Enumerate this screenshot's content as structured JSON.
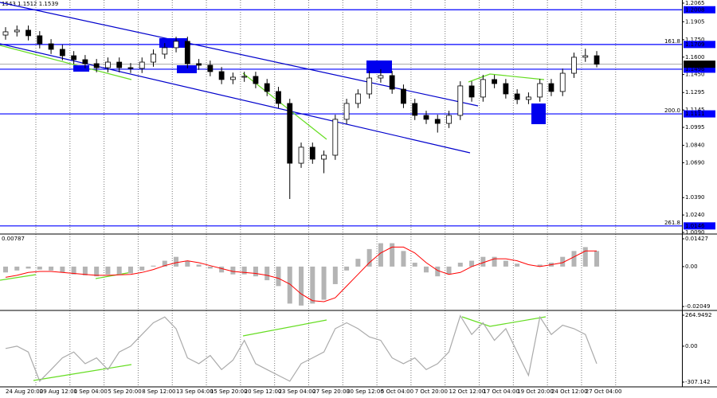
{
  "header_text": "1543 1.1512 1.1539",
  "chart_data": [
    {
      "type": "candlestick",
      "categories": [
        "24 Aug 20:00",
        null,
        null,
        "29 Aug 12:00",
        null,
        null,
        "1 Sep 04:00",
        null,
        null,
        "5 Sep 20:00",
        null,
        null,
        "8 Sep 12:00",
        null,
        null,
        "13 Sep 04:00",
        null,
        null,
        "15 Sep 20:00",
        null,
        null,
        "20 Sep 12:00",
        null,
        null,
        "23 Sep 04:00",
        null,
        null,
        "27 Sep 20:00",
        null,
        null,
        "30 Sep 12:00",
        null,
        null,
        "5 Oct 04:00",
        null,
        null,
        "7 Oct 20:00",
        null,
        null,
        "12 Oct 12:00",
        null,
        null,
        "17 Oct 04:00",
        null,
        null,
        "19 Oct 20:00",
        null,
        null,
        "24 Oct 12:00",
        null,
        null,
        "27 Oct 04:00",
        null
      ],
      "open": [
        1.179,
        1.1818,
        1.1832,
        1.1784,
        1.1715,
        1.1667,
        1.1612,
        1.1578,
        1.1544,
        1.1509,
        1.1557,
        1.1509,
        1.1503,
        1.1557,
        1.1626,
        1.1681,
        1.1736,
        1.1544,
        1.153,
        1.1475,
        1.1407,
        1.1427,
        1.1434,
        1.1372,
        1.1304,
        1.1201,
        1.0686,
        1.0824,
        1.0721,
        1.0755,
        1.1064,
        1.1201,
        1.1283,
        1.142,
        1.1441,
        1.1324,
        1.1201,
        1.1098,
        1.1064,
        1.1029,
        1.1098,
        1.1352,
        1.1256,
        1.1407,
        1.1372,
        1.1283,
        1.1235,
        1.1256,
        1.1372,
        1.1304,
        1.1461,
        1.1599,
        1.1612
      ],
      "high": [
        1.1858,
        1.1872,
        1.1872,
        1.1824,
        1.1755,
        1.1707,
        1.1652,
        1.1618,
        1.1584,
        1.1597,
        1.1597,
        1.1549,
        1.1597,
        1.1666,
        1.1721,
        1.1776,
        1.1776,
        1.1584,
        1.157,
        1.1515,
        1.1467,
        1.1474,
        1.1474,
        1.1412,
        1.1344,
        1.1241,
        1.0864,
        1.0864,
        1.0795,
        1.1104,
        1.1241,
        1.1323,
        1.148,
        1.1496,
        1.1481,
        1.1364,
        1.1241,
        1.1138,
        1.1104,
        1.1138,
        1.1392,
        1.1392,
        1.1447,
        1.1447,
        1.1412,
        1.1323,
        1.1296,
        1.1412,
        1.1412,
        1.1501,
        1.1639,
        1.1672,
        1.1652
      ],
      "low": [
        1.175,
        1.1778,
        1.1744,
        1.1675,
        1.1627,
        1.1572,
        1.1538,
        1.1504,
        1.1469,
        1.1469,
        1.1469,
        1.1463,
        1.1463,
        1.1517,
        1.1586,
        1.1641,
        1.1504,
        1.149,
        1.1435,
        1.1367,
        1.1367,
        1.1387,
        1.1332,
        1.1264,
        1.1161,
        1.0378,
        1.0646,
        1.0681,
        1.06,
        1.0715,
        1.1024,
        1.1161,
        1.1243,
        1.138,
        1.1284,
        1.1161,
        1.1058,
        1.1024,
        1.095,
        1.0989,
        1.1058,
        1.1216,
        1.1216,
        1.1332,
        1.1243,
        1.1195,
        1.1195,
        1.1216,
        1.1264,
        1.1264,
        1.1421,
        1.1559,
        1.1512
      ],
      "close": [
        1.1818,
        1.1832,
        1.1784,
        1.1715,
        1.1667,
        1.1612,
        1.1578,
        1.1544,
        1.1509,
        1.1557,
        1.1509,
        1.1503,
        1.1557,
        1.1626,
        1.1681,
        1.1736,
        1.1544,
        1.153,
        1.1475,
        1.1407,
        1.1427,
        1.1434,
        1.1372,
        1.1304,
        1.1201,
        1.0686,
        1.0824,
        1.0721,
        1.0755,
        1.1064,
        1.1201,
        1.1283,
        1.142,
        1.1441,
        1.1324,
        1.1201,
        1.1098,
        1.1064,
        1.1029,
        1.1098,
        1.1352,
        1.1256,
        1.1407,
        1.1372,
        1.1283,
        1.1235,
        1.1256,
        1.1372,
        1.1304,
        1.1461,
        1.1599,
        1.1612,
        1.1539
      ],
      "ylim": [
        1.0083,
        1.2092
      ],
      "yticks": [
        1.2065,
        1.1905,
        {
          "value": 1.175,
          "label": "1.1750"
        },
        {
          "value": 1.16,
          "label": "1.1600"
        },
        {
          "value": 1.145,
          "label": "1.1450"
        },
        1.1295,
        1.1145,
        1.0995,
        {
          "value": 1.084,
          "label": "1.0840"
        },
        {
          "value": 1.069,
          "label": "1.0690"
        },
        {
          "value": 1.039,
          "label": "1.0390"
        },
        {
          "value": 1.024,
          "label": "1.0240"
        },
        {
          "value": 1.009,
          "label": "1.0090"
        }
      ],
      "levels": [
        {
          "value": 1.2008
        },
        {
          "value": 1.1709,
          "fib": "161.8"
        },
        {
          "value": 1.1496
        },
        {
          "value": 1.1111,
          "fib": "200.0"
        },
        {
          "value": 1.0146,
          "fib": "261.8"
        }
      ],
      "last": 1.1539,
      "color": "#000000",
      "level_color": "#0000ff"
    },
    {
      "type": "macd",
      "label": "0.00787",
      "values": [
        -0.003,
        -0.002,
        -0.001,
        -0.0015,
        -0.002,
        -0.003,
        -0.004,
        -0.0045,
        -0.005,
        -0.004,
        -0.004,
        -0.0035,
        -0.002,
        0.0005,
        0.003,
        0.005,
        0.003,
        0.001,
        -0.001,
        -0.003,
        -0.004,
        -0.004,
        -0.005,
        -0.007,
        -0.01,
        -0.019,
        -0.02,
        -0.019,
        -0.017,
        -0.009,
        -0.002,
        0.004,
        0.009,
        0.012,
        0.012,
        0.008,
        0.002,
        -0.003,
        -0.005,
        -0.004,
        0.002,
        0.003,
        0.005,
        0.005,
        0.003,
        0.0015,
        0,
        0.001,
        0.002,
        0.005,
        0.008,
        0.01,
        0.008
      ],
      "line_values": [
        -0.0055,
        -0.0045,
        -0.003,
        -0.0025,
        -0.0025,
        -0.003,
        -0.0035,
        -0.004,
        -0.0045,
        -0.0045,
        -0.0042,
        -0.004,
        -0.003,
        -0.0015,
        0.0005,
        0.002,
        0.003,
        0.002,
        0.0005,
        -0.001,
        -0.0025,
        -0.003,
        -0.0035,
        -0.0045,
        -0.006,
        -0.009,
        -0.014,
        -0.0175,
        -0.018,
        -0.016,
        -0.01,
        -0.004,
        0.002,
        0.007,
        0.01,
        0.01,
        0.007,
        0.002,
        -0.002,
        -0.004,
        -0.003,
        0,
        0.002,
        0.004,
        0.004,
        0.003,
        0.001,
        0,
        0.001,
        0.002,
        0.005,
        0.008,
        0.008
      ],
      "color": "#b4b4b4",
      "line_color": "#ff0000",
      "ylim": [
        -0.0221,
        0.0159
      ],
      "yticks": [
        0.01427,
        {
          "value": 0,
          "label": "0.00"
        },
        -0.02049
      ]
    },
    {
      "type": "line",
      "values": [
        -20,
        0,
        -50,
        -300,
        -200,
        -100,
        -50,
        -150,
        -100,
        -200,
        -50,
        0,
        100,
        200,
        250,
        150,
        -100,
        -150,
        -80,
        -200,
        -120,
        50,
        -150,
        -200,
        -250,
        -300,
        -150,
        -100,
        -50,
        150,
        200,
        150,
        80,
        50,
        -100,
        -150,
        -100,
        -200,
        -150,
        -50,
        260,
        100,
        200,
        50,
        150,
        -50,
        -250,
        250,
        100,
        180,
        150,
        100,
        -150
      ],
      "color": "#aaaaaa",
      "ylim": [
        -334.4,
        292.2
      ],
      "yticks": [
        264.9492,
        {
          "value": 0,
          "label": "0.00"
        },
        -307.142
      ]
    }
  ]
}
